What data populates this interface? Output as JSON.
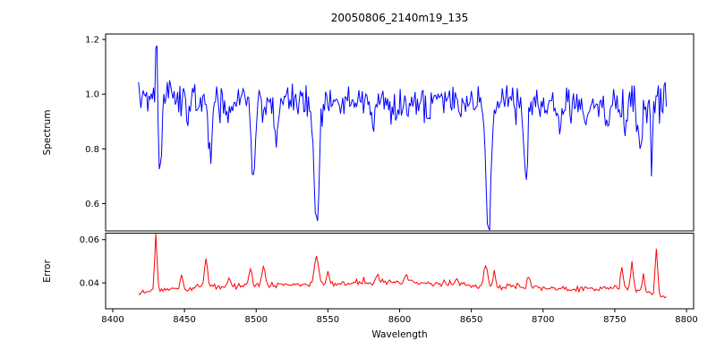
{
  "chart_data": [
    {
      "type": "line",
      "series_name": "spectrum",
      "title": "20050806_2140m19_135",
      "ylabel": "Spectrum",
      "line_color": "#0000ff",
      "xlim": [
        8395,
        8805
      ],
      "ylim": [
        0.5,
        1.22
      ],
      "ytick_values": [
        0.6,
        0.8,
        1.0,
        1.2
      ],
      "ytick_labels": [
        "0.6",
        "0.8",
        "1.0",
        "1.2"
      ],
      "x_start": 8418,
      "x_end": 8786,
      "x_step": 0.8,
      "continuum_points": [
        [
          8418,
          1.0
        ],
        [
          8470,
          0.98
        ],
        [
          8600,
          0.975
        ],
        [
          8700,
          0.97
        ],
        [
          8786,
          0.955
        ]
      ],
      "noise_amplitude": 0.065,
      "extra_noise_from": 8742,
      "extra_noise_factor": 1.6,
      "emission_spikes": [
        {
          "center": 8430.5,
          "height": 0.22,
          "width": 1.0
        }
      ],
      "absorption_lines": [
        {
          "center": 8433,
          "depth": 0.27,
          "width": 1.6
        },
        {
          "center": 8452,
          "depth": 0.1,
          "width": 1.2
        },
        {
          "center": 8468,
          "depth": 0.21,
          "width": 1.8
        },
        {
          "center": 8480,
          "depth": 0.08,
          "width": 1.2
        },
        {
          "center": 8498,
          "depth": 0.3,
          "width": 2.0
        },
        {
          "center": 8514,
          "depth": 0.13,
          "width": 1.4
        },
        {
          "center": 8542,
          "depth": 0.45,
          "width": 2.6
        },
        {
          "center": 8582,
          "depth": 0.1,
          "width": 1.3
        },
        {
          "center": 8598,
          "depth": 0.08,
          "width": 1.2
        },
        {
          "center": 8620,
          "depth": 0.07,
          "width": 1.2
        },
        {
          "center": 8642,
          "depth": 0.08,
          "width": 1.2
        },
        {
          "center": 8662,
          "depth": 0.46,
          "width": 2.6
        },
        {
          "center": 8688,
          "depth": 0.26,
          "width": 1.8
        },
        {
          "center": 8712,
          "depth": 0.08,
          "width": 1.2
        },
        {
          "center": 8730,
          "depth": 0.08,
          "width": 1.2
        },
        {
          "center": 8745,
          "depth": 0.12,
          "width": 1.2
        },
        {
          "center": 8757,
          "depth": 0.11,
          "width": 1.2
        },
        {
          "center": 8768,
          "depth": 0.15,
          "width": 1.2
        },
        {
          "center": 8776,
          "depth": 0.12,
          "width": 1.2
        }
      ]
    },
    {
      "type": "line",
      "series_name": "error",
      "ylabel": "Error",
      "xlabel": "Wavelength",
      "line_color": "#ff0000",
      "xlim": [
        8395,
        8805
      ],
      "ylim": [
        0.028,
        0.063
      ],
      "ytick_values": [
        0.04,
        0.06
      ],
      "ytick_labels": [
        "0.04",
        "0.06"
      ],
      "xtick_values": [
        8400,
        8450,
        8500,
        8550,
        8600,
        8650,
        8700,
        8750,
        8800
      ],
      "xtick_labels": [
        "8400",
        "8450",
        "8500",
        "8550",
        "8600",
        "8650",
        "8700",
        "8750",
        "8800"
      ],
      "x_start": 8418,
      "x_end": 8786,
      "x_step": 1.0,
      "baseline_points": [
        [
          8418,
          0.0355
        ],
        [
          8460,
          0.038
        ],
        [
          8520,
          0.039
        ],
        [
          8600,
          0.04
        ],
        [
          8660,
          0.0385
        ],
        [
          8720,
          0.037
        ],
        [
          8760,
          0.0375
        ],
        [
          8786,
          0.0335
        ]
      ],
      "noise_amplitude": 0.0015,
      "spikes": [
        {
          "center": 8430,
          "height": 0.025,
          "width": 1.2
        },
        {
          "center": 8448,
          "height": 0.007,
          "width": 1.2
        },
        {
          "center": 8465,
          "height": 0.013,
          "width": 1.4
        },
        {
          "center": 8481,
          "height": 0.005,
          "width": 1.2
        },
        {
          "center": 8496,
          "height": 0.008,
          "width": 1.5
        },
        {
          "center": 8505,
          "height": 0.009,
          "width": 1.5
        },
        {
          "center": 8542,
          "height": 0.013,
          "width": 2.0
        },
        {
          "center": 8550,
          "height": 0.006,
          "width": 1.3
        },
        {
          "center": 8585,
          "height": 0.004,
          "width": 1.6
        },
        {
          "center": 8605,
          "height": 0.004,
          "width": 1.6
        },
        {
          "center": 8640,
          "height": 0.003,
          "width": 1.5
        },
        {
          "center": 8660,
          "height": 0.01,
          "width": 1.8
        },
        {
          "center": 8666,
          "height": 0.006,
          "width": 1.3
        },
        {
          "center": 8690,
          "height": 0.006,
          "width": 1.4
        },
        {
          "center": 8755,
          "height": 0.01,
          "width": 1.3
        },
        {
          "center": 8762,
          "height": 0.012,
          "width": 1.3
        },
        {
          "center": 8770,
          "height": 0.007,
          "width": 1.2
        },
        {
          "center": 8779,
          "height": 0.021,
          "width": 1.2
        }
      ]
    }
  ]
}
